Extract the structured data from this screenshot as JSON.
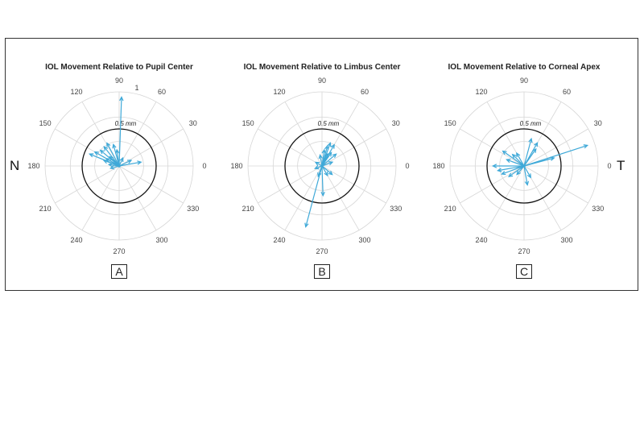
{
  "side_labels": {
    "left": "N",
    "right": "T"
  },
  "colors": {
    "vector": "#3fa9d8",
    "grid": "#d6d6d6",
    "ring": "#111111"
  },
  "chart_data": [
    {
      "type": "polar-vector",
      "panel_label": "A",
      "title": "IOL Movement Relative to Pupil Center",
      "angle_ticks": [
        "0",
        "30",
        "60",
        "90",
        "120",
        "150",
        "180",
        "210",
        "240",
        "270",
        "300",
        "330"
      ],
      "radial_tick": "1",
      "ring_label": "0.5 mm",
      "ring_radius_mm": 0.5,
      "rmax_mm": 1.0,
      "vectors": [
        {
          "angle": 88,
          "magnitude": 0.93
        },
        {
          "angle": 158,
          "magnitude": 0.43
        },
        {
          "angle": 150,
          "magnitude": 0.38
        },
        {
          "angle": 140,
          "magnitude": 0.33
        },
        {
          "angle": 128,
          "magnitude": 0.33
        },
        {
          "angle": 118,
          "magnitude": 0.35
        },
        {
          "angle": 105,
          "magnitude": 0.3
        },
        {
          "angle": 98,
          "magnitude": 0.22
        },
        {
          "angle": 135,
          "magnitude": 0.18
        },
        {
          "angle": 160,
          "magnitude": 0.22
        },
        {
          "angle": 172,
          "magnitude": 0.14
        },
        {
          "angle": 25,
          "magnitude": 0.18
        },
        {
          "angle": 10,
          "magnitude": 0.3
        },
        {
          "angle": 65,
          "magnitude": 0.12
        },
        {
          "angle": 195,
          "magnitude": 0.12
        },
        {
          "angle": 150,
          "magnitude": 0.2
        }
      ]
    },
    {
      "type": "polar-vector",
      "panel_label": "B",
      "title": "IOL Movement Relative to Limbus Center",
      "angle_ticks": [
        "0",
        "30",
        "60",
        "90",
        "120",
        "150",
        "180",
        "210",
        "240",
        "270",
        "300",
        "330"
      ],
      "radial_tick": "",
      "ring_label": "0.5 mm",
      "ring_radius_mm": 0.5,
      "rmax_mm": 1.0,
      "vectors": [
        {
          "angle": 255,
          "magnitude": 0.85
        },
        {
          "angle": 272,
          "magnitude": 0.4
        },
        {
          "angle": 70,
          "magnitude": 0.33
        },
        {
          "angle": 60,
          "magnitude": 0.33
        },
        {
          "angle": 75,
          "magnitude": 0.28
        },
        {
          "angle": 82,
          "magnitude": 0.22
        },
        {
          "angle": 55,
          "magnitude": 0.22
        },
        {
          "angle": 40,
          "magnitude": 0.25
        },
        {
          "angle": 100,
          "magnitude": 0.15
        },
        {
          "angle": 20,
          "magnitude": 0.15
        },
        {
          "angle": 300,
          "magnitude": 0.15
        },
        {
          "angle": 320,
          "magnitude": 0.18
        },
        {
          "angle": 250,
          "magnitude": 0.15
        },
        {
          "angle": 200,
          "magnitude": 0.1
        },
        {
          "angle": 150,
          "magnitude": 0.1
        },
        {
          "angle": 65,
          "magnitude": 0.18
        }
      ]
    },
    {
      "type": "polar-vector",
      "panel_label": "C",
      "title": "IOL Movement Relative to Corneal Apex",
      "angle_ticks": [
        "0",
        "30",
        "60",
        "90",
        "120",
        "150",
        "180",
        "210",
        "240",
        "270",
        "300",
        "330"
      ],
      "radial_tick": "",
      "ring_label": "0.5 mm",
      "ring_radius_mm": 0.5,
      "rmax_mm": 1.0,
      "vectors": [
        {
          "angle": 18,
          "magnitude": 0.9
        },
        {
          "angle": 15,
          "magnitude": 0.42
        },
        {
          "angle": 180,
          "magnitude": 0.42
        },
        {
          "angle": 190,
          "magnitude": 0.36
        },
        {
          "angle": 200,
          "magnitude": 0.32
        },
        {
          "angle": 145,
          "magnitude": 0.35
        },
        {
          "angle": 135,
          "magnitude": 0.22
        },
        {
          "angle": 120,
          "magnitude": 0.2
        },
        {
          "angle": 75,
          "magnitude": 0.38
        },
        {
          "angle": 60,
          "magnitude": 0.36
        },
        {
          "angle": 55,
          "magnitude": 0.28
        },
        {
          "angle": 215,
          "magnitude": 0.25
        },
        {
          "angle": 280,
          "magnitude": 0.26
        },
        {
          "angle": 300,
          "magnitude": 0.18
        },
        {
          "angle": 230,
          "magnitude": 0.15
        },
        {
          "angle": 160,
          "magnitude": 0.25
        }
      ]
    }
  ]
}
